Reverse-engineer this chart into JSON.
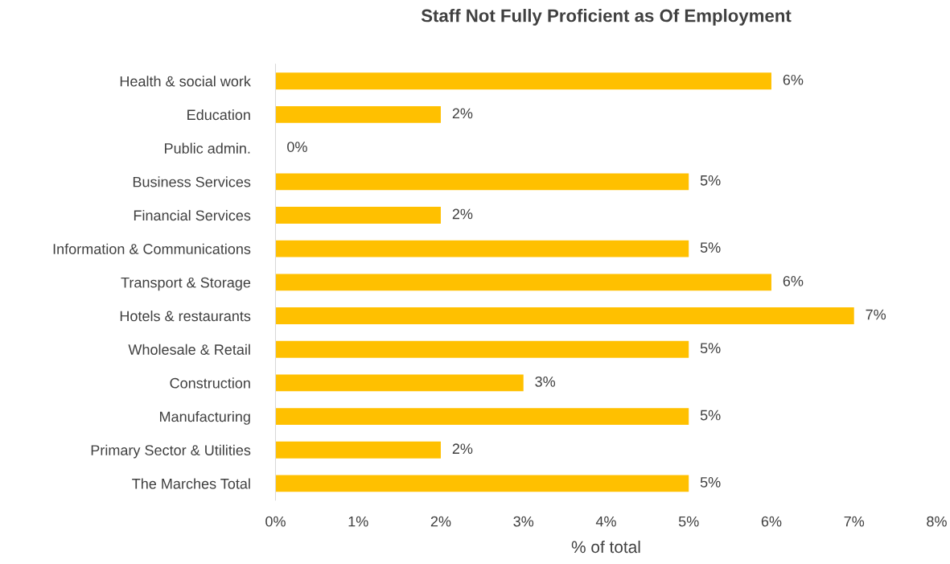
{
  "chart_data": {
    "type": "bar",
    "orientation": "horizontal",
    "title": "Staff Not Fully Proficient as Of Employment",
    "xlabel": "% of total",
    "categories": [
      "Health & social work",
      "Education",
      "Public admin.",
      "Business Services",
      "Financial Services",
      "Information & Communications",
      "Transport & Storage",
      "Hotels & restaurants",
      "Wholesale & Retail",
      "Construction",
      "Manufacturing",
      "Primary Sector & Utilities",
      "The Marches Total"
    ],
    "values": [
      6,
      2,
      0,
      5,
      2,
      5,
      6,
      7,
      5,
      3,
      5,
      2,
      5
    ],
    "value_labels": [
      "6%",
      "2%",
      "0%",
      "5%",
      "2%",
      "5%",
      "6%",
      "7%",
      "5%",
      "3%",
      "5%",
      "2%",
      "5%"
    ],
    "color": "#ffc000",
    "xlim": [
      0,
      8
    ],
    "xticks": [
      {
        "value": 0,
        "label": "0%"
      },
      {
        "value": 1,
        "label": "1%"
      },
      {
        "value": 2,
        "label": "2%"
      },
      {
        "value": 3,
        "label": "3%"
      },
      {
        "value": 4,
        "label": "4%"
      },
      {
        "value": 5,
        "label": "5%"
      },
      {
        "value": 6,
        "label": "6%"
      },
      {
        "value": 7,
        "label": "7%"
      },
      {
        "value": 8,
        "label": "8%"
      }
    ],
    "grid": false,
    "legend": false
  }
}
